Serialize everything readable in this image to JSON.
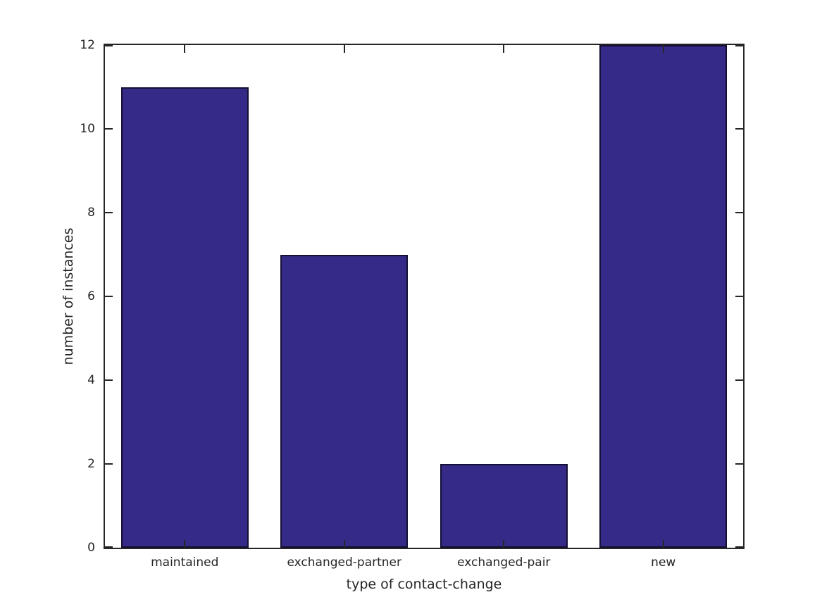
{
  "figure": {
    "background": "#ffffff"
  },
  "chart_data": {
    "type": "bar",
    "title": "",
    "categories": [
      "maintained",
      "exchanged-partner",
      "exchanged-pair",
      "new"
    ],
    "values": [
      11,
      7,
      2,
      12
    ],
    "xlabel": "type of contact-change",
    "ylabel": "number of instances",
    "ylim": [
      0,
      12
    ],
    "yticks": [
      0,
      2,
      4,
      6,
      8,
      10,
      12
    ],
    "grid": false,
    "legend": null,
    "bar_width_fraction": 0.8,
    "bar_color": "#352a87",
    "bar_edge_color": "#151033",
    "axis_color": "#262626",
    "text_color": "#262626"
  }
}
